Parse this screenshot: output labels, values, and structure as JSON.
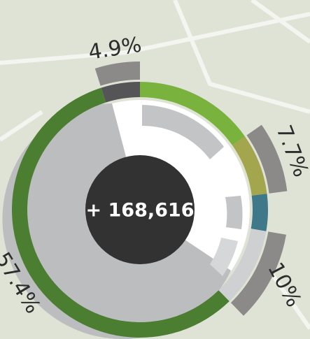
{
  "chart_data": {
    "type": "radial",
    "center_label": "+ 168,616",
    "values": [
      4.9,
      15.3,
      7.7,
      4.7,
      10,
      57.4
    ],
    "value_labels": [
      "4.9%",
      null,
      "7.7%",
      null,
      "10%",
      "57.4%"
    ],
    "colors": [
      "#555558",
      "#79b23c",
      "#a3a64c",
      "#3e7889",
      "#cfd0d2",
      "#4b7e31"
    ],
    "highlight": [
      true,
      false,
      true,
      false,
      true,
      false
    ],
    "highlight_color": "#8b8a89"
  }
}
